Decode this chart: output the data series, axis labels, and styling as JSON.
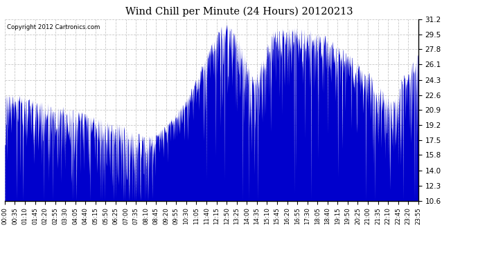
{
  "title": "Wind Chill per Minute (24 Hours) 20120213",
  "copyright_text": "Copyright 2012 Cartronics.com",
  "yticks": [
    10.6,
    12.3,
    14.0,
    15.8,
    17.5,
    19.2,
    20.9,
    22.6,
    24.3,
    26.1,
    27.8,
    29.5,
    31.2
  ],
  "ylim": [
    10.6,
    31.2
  ],
  "line_color": "#0000cc",
  "fill_color": "#0000cc",
  "bg_color": "#ffffff",
  "grid_color": "#c8c8c8",
  "xtick_labels": [
    "00:00",
    "00:35",
    "01:10",
    "01:45",
    "02:20",
    "02:55",
    "03:30",
    "04:05",
    "04:40",
    "05:15",
    "05:50",
    "06:25",
    "07:00",
    "07:35",
    "08:10",
    "08:45",
    "09:20",
    "09:55",
    "10:30",
    "11:05",
    "11:40",
    "12:15",
    "12:50",
    "13:25",
    "14:00",
    "14:35",
    "15:10",
    "15:45",
    "16:20",
    "16:55",
    "17:30",
    "18:05",
    "18:40",
    "19:15",
    "19:50",
    "20:25",
    "21:00",
    "21:35",
    "22:10",
    "22:45",
    "23:20",
    "23:55"
  ],
  "n_minutes": 1440,
  "base_curve_points": {
    "hours": [
      0,
      1.0,
      1.5,
      3.0,
      5.0,
      6.5,
      7.2,
      7.8,
      8.3,
      8.7,
      9.5,
      10.5,
      12.0,
      12.7,
      13.5,
      14.5,
      15.5,
      16.5,
      17.5,
      18.5,
      19.5,
      20.5,
      21.0,
      21.8,
      22.5,
      23.0,
      24.0
    ],
    "values": [
      22.8,
      22.6,
      22.3,
      21.5,
      20.5,
      19.5,
      18.8,
      18.3,
      18.0,
      18.2,
      19.5,
      22.0,
      28.5,
      31.0,
      29.5,
      24.5,
      30.0,
      30.5,
      30.2,
      29.5,
      28.0,
      26.5,
      25.5,
      23.5,
      22.0,
      24.5,
      27.5
    ]
  },
  "spike_amplitude_by_hour": {
    "hours": [
      0,
      1.5,
      2.0,
      3.5,
      5.0,
      6.5,
      7.5,
      8.3,
      8.7,
      9.5,
      10.5,
      12.0,
      13.5,
      14.5,
      16.5,
      18.5,
      20.5,
      21.0,
      21.8,
      22.5,
      24.0
    ],
    "amps": [
      4.5,
      4.0,
      5.0,
      4.5,
      4.0,
      4.5,
      5.0,
      5.5,
      2.0,
      1.0,
      1.5,
      4.0,
      4.5,
      5.0,
      4.0,
      4.0,
      3.5,
      4.0,
      5.0,
      4.5,
      4.0
    ]
  }
}
